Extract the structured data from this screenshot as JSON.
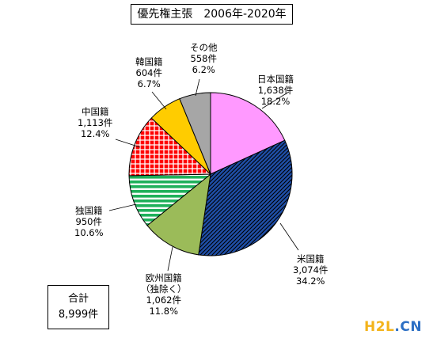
{
  "title": "優先権主張　2006年-2020年",
  "total": {
    "label": "合計",
    "value": "8,999件"
  },
  "chart_data": {
    "type": "pie",
    "title": "優先権主張　2006年-2020年",
    "slices": [
      {
        "label": "日本国籍",
        "count": "1,638件",
        "percent": "18.2%",
        "value": 1638,
        "color": "#ff99ff",
        "pattern": "solid"
      },
      {
        "label": "米国籍",
        "count": "3,074件",
        "percent": "34.2%",
        "value": 3074,
        "color": "#1f4fa8",
        "pattern": "diagonal-hatch"
      },
      {
        "label": "欧州国籍",
        "sublabel": "（独除く）",
        "count": "1,062件",
        "percent": "11.8%",
        "value": 1062,
        "color": "#9bbb59",
        "pattern": "solid"
      },
      {
        "label": "独国籍",
        "count": "950件",
        "percent": "10.6%",
        "value": 950,
        "color": "#1fb05a",
        "pattern": "horizontal-stripes"
      },
      {
        "label": "中国籍",
        "count": "1,113件",
        "percent": "12.4%",
        "value": 1113,
        "color": "#ff0000",
        "pattern": "grid"
      },
      {
        "label": "韓国籍",
        "count": "604件",
        "percent": "6.7%",
        "value": 604,
        "color": "#ffcc00",
        "pattern": "solid"
      },
      {
        "label": "その他",
        "count": "558件",
        "percent": "6.2%",
        "value": 558,
        "color": "#a6a6a6",
        "pattern": "solid"
      }
    ],
    "total": 8999
  },
  "watermark": {
    "part1": "H2L",
    "part2": ".CN"
  }
}
